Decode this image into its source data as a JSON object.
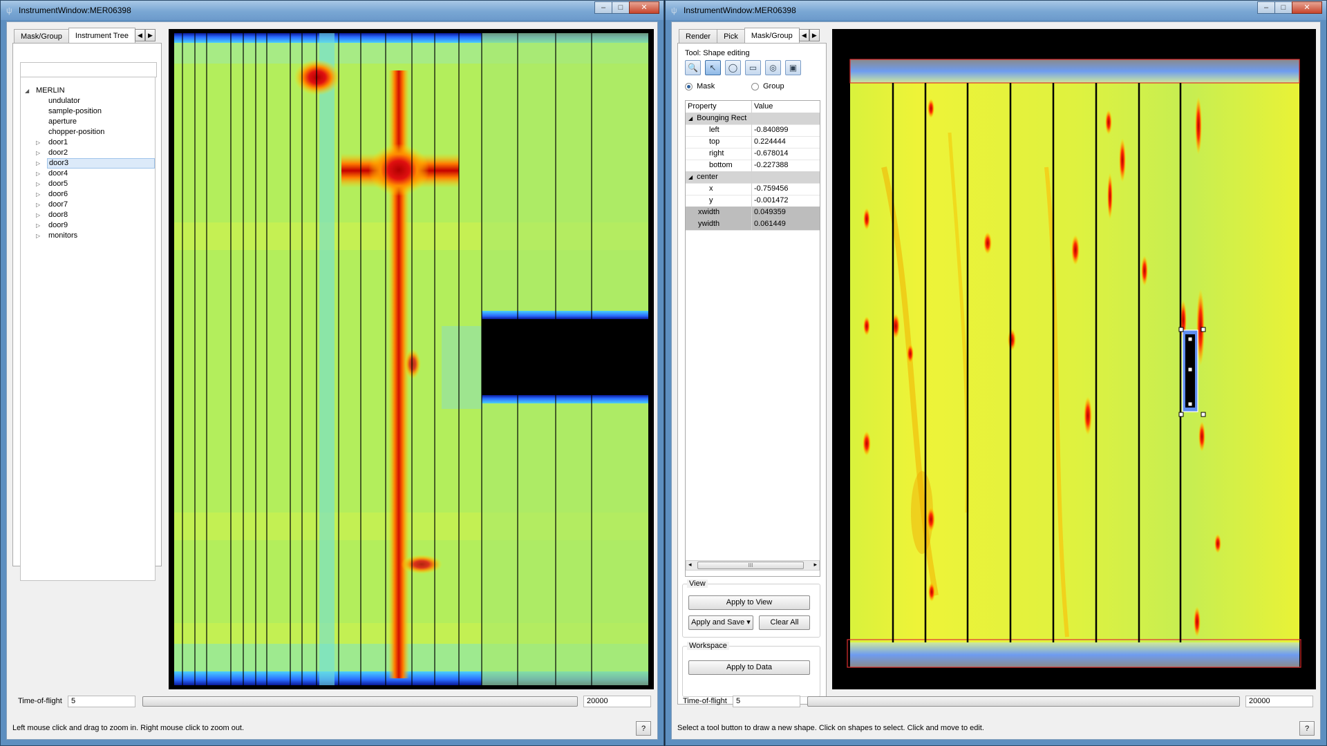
{
  "left_window": {
    "title": "InstrumentWindow:MER06398",
    "controls": [
      "–",
      "□",
      "✕"
    ],
    "tabs": [
      "Mask/Group",
      "Instrument Tree"
    ],
    "active_tab": "Instrument Tree",
    "tab_arrows": [
      "◀",
      "▶"
    ],
    "tree": [
      {
        "label": "MERLIN",
        "expander": "◢",
        "indent": 0
      },
      {
        "label": "undulator",
        "expander": "",
        "indent": 1
      },
      {
        "label": "sample-position",
        "expander": "",
        "indent": 1
      },
      {
        "label": "aperture",
        "expander": "",
        "indent": 1
      },
      {
        "label": "chopper-position",
        "expander": "",
        "indent": 1
      },
      {
        "label": "door1",
        "expander": "▷",
        "indent": 1
      },
      {
        "label": "door2",
        "expander": "▷",
        "indent": 1
      },
      {
        "label": "door3",
        "expander": "▷",
        "indent": 1,
        "selected": true
      },
      {
        "label": "door4",
        "expander": "▷",
        "indent": 1
      },
      {
        "label": "door5",
        "expander": "▷",
        "indent": 1
      },
      {
        "label": "door6",
        "expander": "▷",
        "indent": 1
      },
      {
        "label": "door7",
        "expander": "▷",
        "indent": 1
      },
      {
        "label": "door8",
        "expander": "▷",
        "indent": 1
      },
      {
        "label": "door9",
        "expander": "▷",
        "indent": 1
      },
      {
        "label": "monitors",
        "expander": "▷",
        "indent": 1
      }
    ],
    "tof_label": "Time-of-flight",
    "tof_min": "5",
    "tof_max": "20000",
    "status": "Left mouse click and drag to zoom in. Right mouse click to zoom out.",
    "help_label": "?"
  },
  "right_window": {
    "title": "InstrumentWindow:MER06398",
    "controls": [
      "–",
      "□",
      "✕"
    ],
    "tabs": [
      "Render",
      "Pick",
      "Mask/Group"
    ],
    "active_tab": "Mask/Group",
    "tab_arrows": [
      "◀",
      "▶"
    ],
    "tool_label": "Tool: Shape editing",
    "tool_icons": [
      "zoom-icon",
      "pointer-icon",
      "ellipse-icon",
      "rectangle-icon",
      "ring-ellipse-icon",
      "ring-rectangle-icon"
    ],
    "tool_glyphs": [
      "🔍",
      "↖",
      "◯",
      "▭",
      "◎",
      "▣"
    ],
    "radio_mask": "Mask",
    "radio_group": "Group",
    "mask_selected": true,
    "property_header": "Property",
    "value_header": "Value",
    "properties": [
      {
        "key": "Bounging Rect",
        "value": "",
        "kind": "group",
        "expander": "◢"
      },
      {
        "key": "left",
        "value": "-0.840899",
        "kind": "sub"
      },
      {
        "key": "top",
        "value": "0.224444",
        "kind": "sub"
      },
      {
        "key": "right",
        "value": "-0.678014",
        "kind": "sub"
      },
      {
        "key": "bottom",
        "value": "-0.227388",
        "kind": "sub"
      },
      {
        "key": "center",
        "value": "",
        "kind": "group",
        "expander": "◢"
      },
      {
        "key": "x",
        "value": "-0.759456",
        "kind": "sub"
      },
      {
        "key": "y",
        "value": "-0.001472",
        "kind": "sub"
      },
      {
        "key": "xwidth",
        "value": "0.049359",
        "kind": "dark"
      },
      {
        "key": "ywidth",
        "value": "0.061449",
        "kind": "dark"
      }
    ],
    "scroll_glyphs": [
      "◂",
      "▸"
    ],
    "scroll_thumb": "III",
    "view_title": "View",
    "apply_to_view": "Apply to View",
    "apply_and_save": "Apply and Save",
    "dropdown_glyph": "▾",
    "clear_all": "Clear All",
    "workspace_title": "Workspace",
    "apply_to_data": "Apply to Data",
    "tof_label": "Time-of-flight",
    "tof_min": "5",
    "tof_max": "20000",
    "status": "Select a tool button to draw a new shape. Click on shapes to select. Click and move to edit.",
    "help_label": "?"
  },
  "colors": {
    "window_frame": "#5d8fc0",
    "detector_green": "#b6f15a",
    "detector_yellow": "#f2f23a",
    "hot_red": "#c40000",
    "cold_blue": "#1c3cff",
    "mask_outline": "#e03030"
  }
}
